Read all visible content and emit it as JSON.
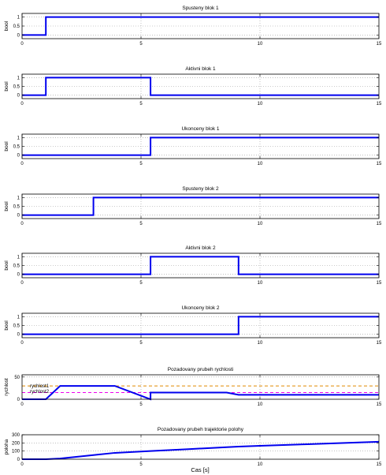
{
  "figure": {
    "xlabel": "Cas [s]"
  },
  "chart_data": [
    {
      "type": "line",
      "title": "Spusteny   blok 1",
      "xlabel": "",
      "ylabel": "bool",
      "xlim": [
        0,
        15
      ],
      "ylim": [
        -0.2,
        1.2
      ],
      "xticks": [
        "0",
        "5",
        "10",
        "15"
      ],
      "yticks": [
        "0",
        "0.5",
        "1"
      ],
      "grid": true,
      "series": [
        {
          "color": "#0000ee",
          "x": [
            0,
            1,
            1,
            15
          ],
          "y": [
            0,
            0,
            1,
            1
          ]
        }
      ]
    },
    {
      "type": "line",
      "title": "Aktivni   blok 1",
      "xlabel": "",
      "ylabel": "bool",
      "xlim": [
        0,
        15
      ],
      "ylim": [
        -0.2,
        1.2
      ],
      "xticks": [
        "0",
        "5",
        "10",
        "15"
      ],
      "yticks": [
        "0",
        "0.5",
        "1"
      ],
      "grid": true,
      "series": [
        {
          "color": "#0000ee",
          "x": [
            0,
            1,
            1,
            5.4,
            5.4,
            15
          ],
          "y": [
            0,
            0,
            1,
            1,
            0,
            0
          ]
        }
      ]
    },
    {
      "type": "line",
      "title": "Ukonceny   blok 1",
      "xlabel": "",
      "ylabel": "bool",
      "xlim": [
        0,
        15
      ],
      "ylim": [
        -0.2,
        1.2
      ],
      "xticks": [
        "0",
        "5",
        "10",
        "15"
      ],
      "yticks": [
        "0",
        "0.5",
        "1"
      ],
      "grid": true,
      "series": [
        {
          "color": "#0000ee",
          "x": [
            0,
            5.4,
            5.4,
            15
          ],
          "y": [
            0,
            0,
            1,
            1
          ]
        }
      ]
    },
    {
      "type": "line",
      "title": "Spusteny   blok 2",
      "xlabel": "",
      "ylabel": "bool",
      "xlim": [
        0,
        15
      ],
      "ylim": [
        -0.2,
        1.2
      ],
      "xticks": [
        "0",
        "5",
        "10",
        "15"
      ],
      "yticks": [
        "0",
        "0.5",
        "1"
      ],
      "grid": true,
      "series": [
        {
          "color": "#0000ee",
          "x": [
            0,
            3,
            3,
            15
          ],
          "y": [
            0,
            0,
            1,
            1
          ]
        }
      ]
    },
    {
      "type": "line",
      "title": "Aktivni   blok 2",
      "xlabel": "",
      "ylabel": "bool",
      "xlim": [
        0,
        15
      ],
      "ylim": [
        -0.2,
        1.2
      ],
      "xticks": [
        "0",
        "5",
        "10",
        "15"
      ],
      "yticks": [
        "0",
        "0.5",
        "1"
      ],
      "grid": true,
      "series": [
        {
          "color": "#0000ee",
          "x": [
            0,
            5.4,
            5.4,
            9.1,
            9.1,
            15
          ],
          "y": [
            0,
            0,
            1,
            1,
            0,
            0
          ]
        }
      ]
    },
    {
      "type": "line",
      "title": "Ukonceny   blok 2",
      "xlabel": "",
      "ylabel": "bool",
      "xlim": [
        0,
        15
      ],
      "ylim": [
        -0.2,
        1.2
      ],
      "xticks": [
        "0",
        "5",
        "10",
        "15"
      ],
      "yticks": [
        "0",
        "0.5",
        "1"
      ],
      "grid": true,
      "series": [
        {
          "color": "#0000ee",
          "x": [
            0,
            9.1,
            9.1,
            15
          ],
          "y": [
            0,
            0,
            1,
            1
          ]
        }
      ]
    },
    {
      "type": "line",
      "title": "Pozadovany prubeh rychlosti",
      "xlabel": "",
      "ylabel": "rychlost",
      "xlim": [
        0,
        15
      ],
      "ylim": [
        0,
        55
      ],
      "xticks": [
        "0",
        "5",
        "10",
        "15"
      ],
      "yticks": [
        "0",
        "50"
      ],
      "grid": true,
      "annotations": [
        {
          "text": "rychlost1",
          "x": 0.2,
          "y": 30
        },
        {
          "text": "rychlost2",
          "x": 0.2,
          "y": 18
        }
      ],
      "series": [
        {
          "color": "#e08a00",
          "dash": true,
          "x": [
            0,
            15
          ],
          "y": [
            30,
            30
          ]
        },
        {
          "color": "#ee00ee",
          "dash": true,
          "x": [
            0,
            15
          ],
          "y": [
            15,
            15
          ]
        },
        {
          "color": "#0000ee",
          "x": [
            0,
            1,
            1.6,
            3.9,
            5.4,
            5.4,
            8.6,
            9.1,
            15
          ],
          "y": [
            0,
            0,
            30,
            30,
            0,
            15,
            15,
            10,
            10
          ]
        }
      ]
    },
    {
      "type": "line",
      "title": "Pozadovany prubeh trajektorie polohy",
      "xlabel": "Cas [s]",
      "ylabel": "poloha",
      "xlim": [
        0,
        15
      ],
      "ylim": [
        0,
        300
      ],
      "xticks": [
        "0",
        "5",
        "10",
        "15"
      ],
      "yticks": [
        "0",
        "100",
        "200",
        "300"
      ],
      "grid": true,
      "series": [
        {
          "color": "#0000ee",
          "x": [
            0,
            1,
            1.6,
            3,
            3.9,
            5.4,
            7,
            8.6,
            9.1,
            10,
            12,
            15
          ],
          "y": [
            0,
            0,
            9,
            51,
            78,
            100,
            124,
            148,
            155,
            164,
            184,
            214
          ]
        }
      ]
    }
  ]
}
